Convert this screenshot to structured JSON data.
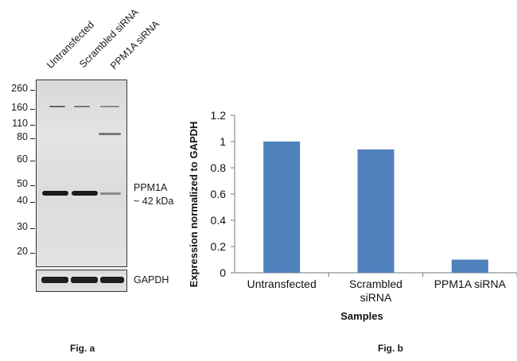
{
  "fig_a": {
    "lanes": [
      "Untransfected",
      "Scrambled siRNA",
      "PPM1A siRNA"
    ],
    "mw_markers": [
      "260",
      "160",
      "110",
      "80",
      "60",
      "50",
      "40",
      "30",
      "20"
    ],
    "target_label": "PPM1A",
    "target_size": "~ 42 kDa",
    "loading_label": "GAPDH",
    "caption": "Fig. a"
  },
  "fig_b": {
    "caption": "Fig. b"
  },
  "chart_data": {
    "type": "bar",
    "categories": [
      "Untransfected",
      "Scrambled siRNA",
      "PPM1A siRNA"
    ],
    "category_lines": [
      [
        "Untransfected"
      ],
      [
        "Scrambled",
        "siRNA"
      ],
      [
        "PPM1A siRNA"
      ]
    ],
    "values": [
      1.0,
      0.94,
      0.1
    ],
    "title": "",
    "xlabel": "Samples",
    "ylabel": "Expression normalized to GAPDH",
    "ylim": [
      0,
      1.2
    ],
    "yticks": [
      "0",
      "0.2",
      "0.4",
      "0.6",
      "0.8",
      "1",
      "1.2"
    ],
    "ytick_values": [
      0,
      0.2,
      0.4,
      0.6,
      0.8,
      1,
      1.2
    ],
    "grid": false,
    "legend": "none",
    "bar_color": "#4f81bd"
  }
}
